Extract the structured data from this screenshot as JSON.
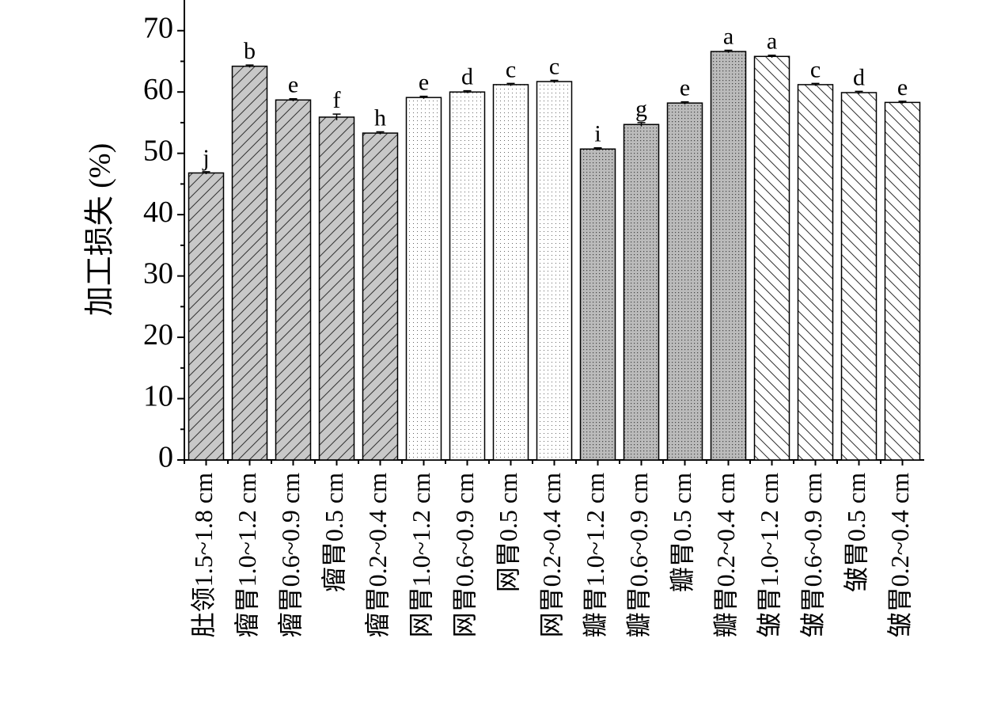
{
  "chart_data": {
    "type": "bar",
    "y_label": "加工损失 (%)",
    "categories": [
      "肚领1.5~1.8 cm",
      "瘤胃1.0~1.2 cm",
      "瘤胃0.6~0.9 cm",
      "瘤胃0.5 cm",
      "瘤胃0.2~0.4 cm",
      "网胃1.0~1.2 cm",
      "网胃0.6~0.9 cm",
      "网胃0.5 cm",
      "网胃0.2~0.4 cm",
      "瓣胃1.0~1.2 cm",
      "瓣胃0.6~0.9 cm",
      "瓣胃0.5 cm",
      "瓣胃0.2~0.4 cm",
      "皱胃1.0~1.2 cm",
      "皱胃0.6~0.9 cm",
      "皱胃0.5 cm",
      "皱胃0.2~0.4 cm"
    ],
    "values": [
      46.8,
      64.2,
      58.7,
      55.9,
      53.3,
      59.1,
      60.0,
      61.2,
      61.7,
      50.7,
      54.7,
      58.2,
      66.6,
      65.8,
      61.2,
      59.9,
      58.3
    ],
    "errors": [
      0.2,
      0.2,
      0.2,
      0.5,
      0.2,
      0.2,
      0.2,
      0.2,
      0.2,
      0.2,
      0.3,
      0.2,
      0.2,
      0.2,
      0.2,
      0.2,
      0.2
    ],
    "value_labels": [
      "j",
      "b",
      "e",
      "f",
      "h",
      "e",
      "d",
      "c",
      "c",
      "i",
      "g",
      "e",
      "a",
      "a",
      "c",
      "d",
      "e"
    ],
    "patterns": [
      "slash",
      "slash",
      "slash",
      "slash",
      "slash",
      "dots",
      "dots",
      "dots",
      "dots",
      "graydots",
      "graydots",
      "graydots",
      "graydots",
      "backslash",
      "backslash",
      "backslash",
      "backslash"
    ],
    "ylim": [
      0,
      75
    ],
    "yticks": [
      0,
      10,
      20,
      30,
      40,
      50,
      60,
      70
    ]
  }
}
